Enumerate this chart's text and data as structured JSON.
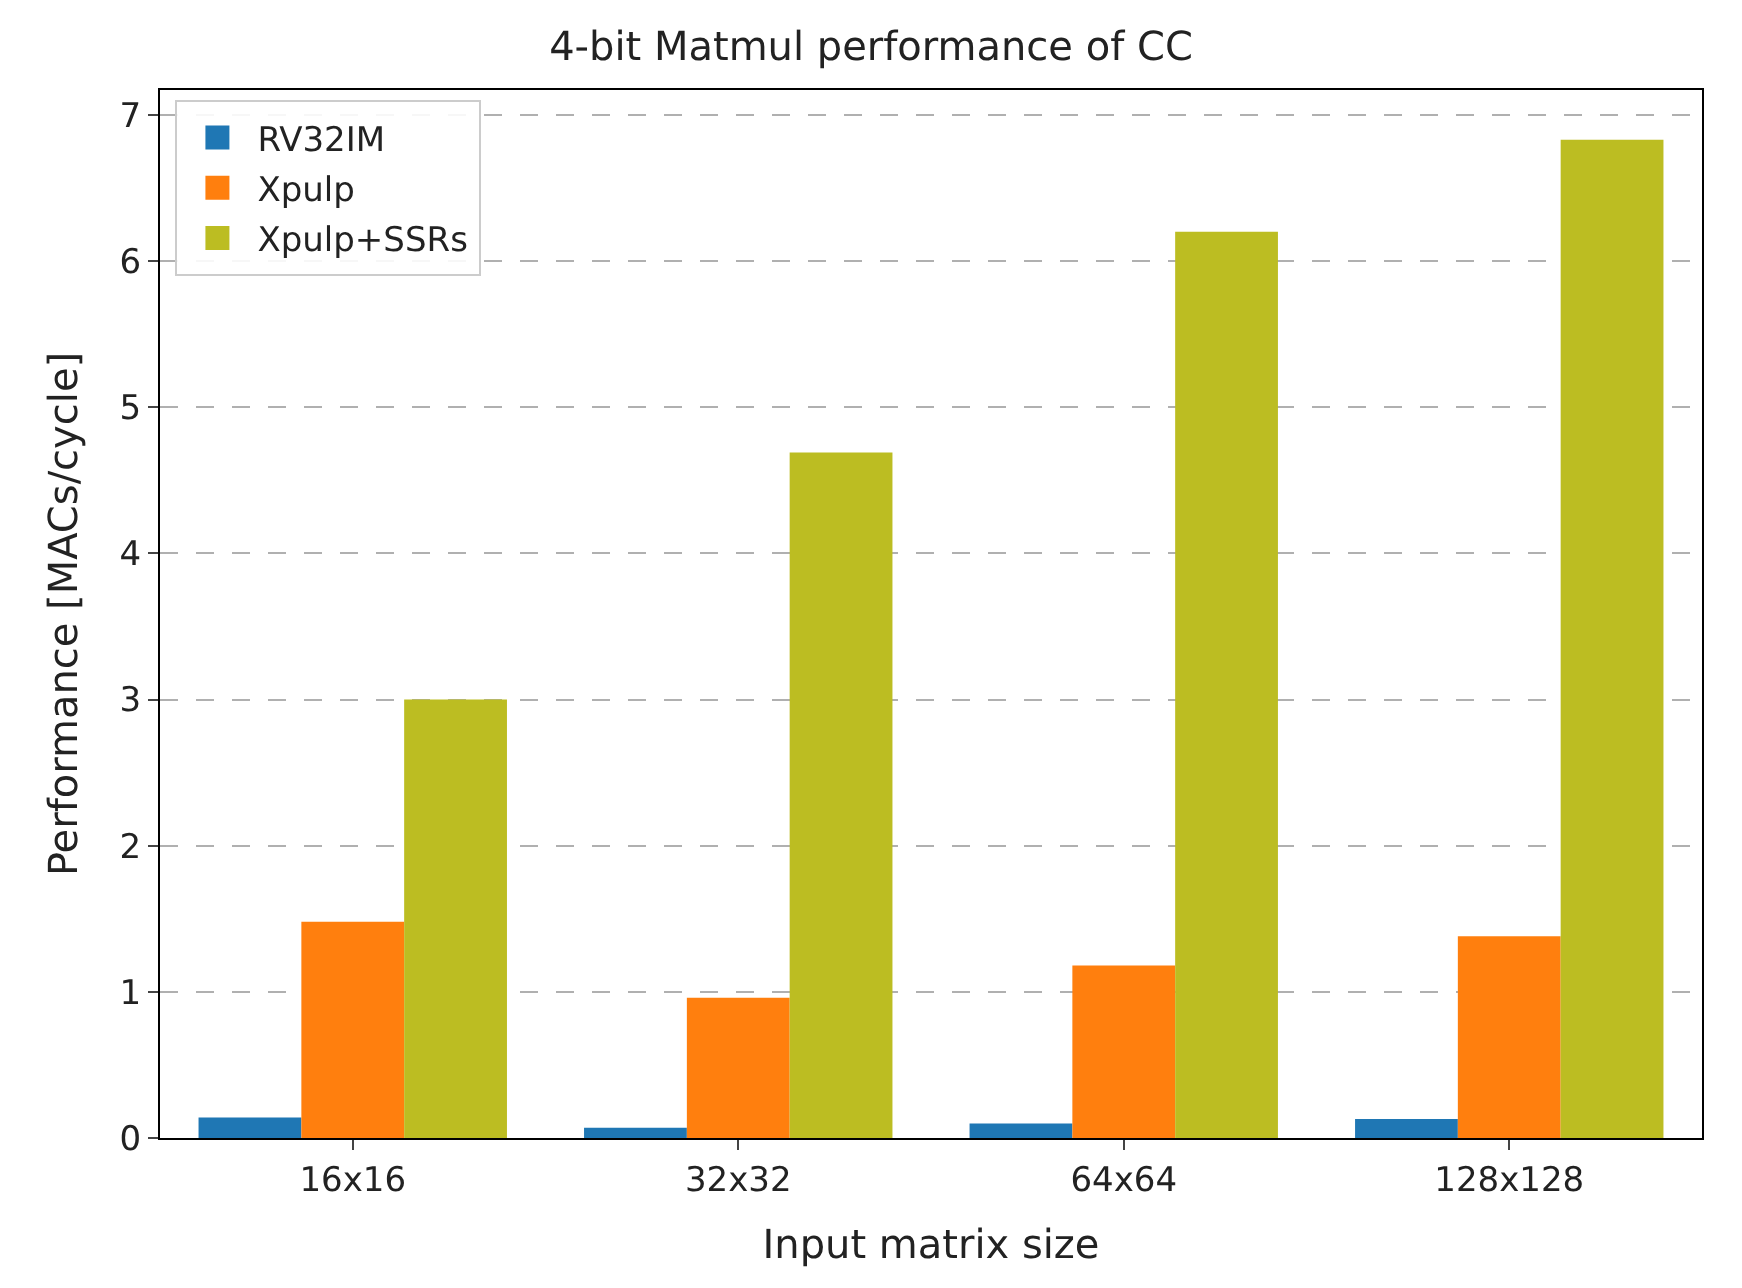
{
  "chart_data": {
    "type": "bar",
    "title": "4-bit Matmul performance of CC",
    "xlabel": "Input matrix size",
    "ylabel": "Performance [MACs/cycle]",
    "categories": [
      "16x16",
      "32x32",
      "64x64",
      "128x128"
    ],
    "series": [
      {
        "name": "RV32IM",
        "color": "#1f77b4",
        "values": [
          0.14,
          0.07,
          0.1,
          0.13
        ]
      },
      {
        "name": "Xpulp",
        "color": "#ff7f0e",
        "values": [
          1.48,
          0.96,
          1.18,
          1.38
        ]
      },
      {
        "name": "Xpulp+SSRs",
        "color": "#bcbd22",
        "values": [
          3.0,
          4.69,
          6.2,
          6.83
        ]
      }
    ],
    "ylim": [
      0,
      7.17
    ],
    "yticks": [
      0,
      1,
      2,
      3,
      4,
      5,
      6,
      7
    ],
    "grid": "y",
    "legend": "top left"
  }
}
